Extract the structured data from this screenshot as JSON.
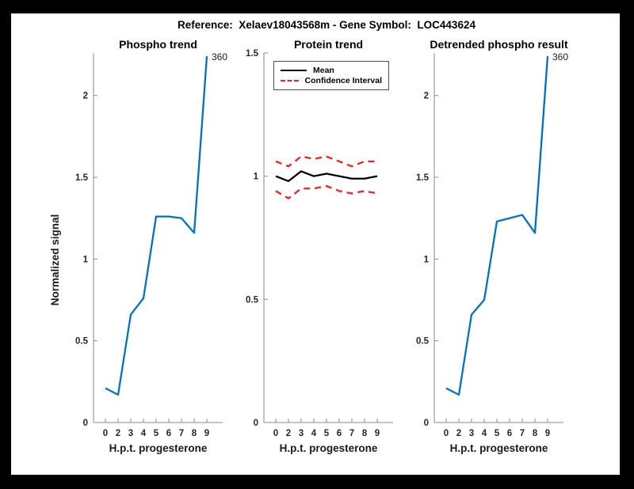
{
  "window": {
    "title": "Reference:  Xelaev18043568m - Gene Symbol:  LOC443624"
  },
  "colors": {
    "background": "#ffffff",
    "frame": "#000000",
    "blue_line": "#0072bd",
    "mean_line": "#000000",
    "confidence_line": "#ee2222",
    "spine": "#8a8a8a",
    "tick_text": "#262626"
  },
  "chart_data": [
    {
      "id": "phospho-trend",
      "type": "line",
      "title": "Phospho trend",
      "xlabel": "H.p.t. progesterone",
      "ylabel": "Normalized signal",
      "categories": [
        "0",
        "2",
        "3",
        "4",
        "5",
        "6",
        "7",
        "8",
        "9"
      ],
      "y_ticks": [
        "0",
        "0.5",
        "1",
        "1.5",
        "2"
      ],
      "y_tick_values": [
        0,
        0.5,
        1,
        1.5,
        2
      ],
      "ylim": [
        0,
        2.26
      ],
      "grid": false,
      "series": [
        {
          "name": "Phospho",
          "color": "#0072bd",
          "style": "solid",
          "values": [
            0.21,
            0.17,
            0.66,
            0.76,
            1.26,
            1.26,
            1.25,
            1.16,
            2.24
          ]
        }
      ],
      "annotations": [
        {
          "text": "360",
          "at_index": 8,
          "value": 2.24
        }
      ],
      "legend": null
    },
    {
      "id": "protein-trend",
      "type": "line",
      "title": "Protein trend",
      "xlabel": "H.p.t. progesterone",
      "ylabel": "",
      "categories": [
        "0",
        "2",
        "3",
        "4",
        "5",
        "6",
        "7",
        "8",
        "9"
      ],
      "y_ticks": [
        "0",
        "0.5",
        "1",
        "1.5"
      ],
      "y_tick_values": [
        0,
        0.5,
        1,
        1.5
      ],
      "ylim": [
        0,
        1.5
      ],
      "grid": false,
      "series": [
        {
          "name": "Mean",
          "color": "#000000",
          "style": "solid",
          "values": [
            1.0,
            0.98,
            1.02,
            1.0,
            1.01,
            1.0,
            0.99,
            0.99,
            1.0
          ]
        },
        {
          "name": "Confidence Interval (upper)",
          "color": "#ee2222",
          "style": "dashed",
          "values": [
            1.06,
            1.04,
            1.08,
            1.07,
            1.08,
            1.06,
            1.04,
            1.06,
            1.06
          ]
        },
        {
          "name": "Confidence Interval (lower)",
          "color": "#ee2222",
          "style": "dashed",
          "values": [
            0.94,
            0.91,
            0.95,
            0.95,
            0.96,
            0.94,
            0.93,
            0.94,
            0.93
          ]
        }
      ],
      "annotations": [],
      "legend": {
        "position": "northwest",
        "entries": [
          {
            "label": "Mean",
            "color": "#000000",
            "style": "solid"
          },
          {
            "label": "Confidence Interval",
            "color": "#ee2222",
            "style": "dashed"
          }
        ]
      }
    },
    {
      "id": "detrended-phospho-result",
      "type": "line",
      "title": "Detrended phospho result",
      "xlabel": "H.p.t. progesterone",
      "ylabel": "",
      "categories": [
        "0",
        "2",
        "3",
        "4",
        "5",
        "6",
        "7",
        "8",
        "9"
      ],
      "y_ticks": [
        "0",
        "0.5",
        "1",
        "1.5",
        "2"
      ],
      "y_tick_values": [
        0,
        0.5,
        1,
        1.5,
        2
      ],
      "ylim": [
        0,
        2.26
      ],
      "grid": false,
      "series": [
        {
          "name": "Detrended phospho",
          "color": "#0072bd",
          "style": "solid",
          "values": [
            0.21,
            0.17,
            0.66,
            0.75,
            1.23,
            1.25,
            1.27,
            1.16,
            2.24
          ]
        }
      ],
      "annotations": [
        {
          "text": "360",
          "at_index": 8,
          "value": 2.24
        }
      ],
      "legend": null
    }
  ]
}
